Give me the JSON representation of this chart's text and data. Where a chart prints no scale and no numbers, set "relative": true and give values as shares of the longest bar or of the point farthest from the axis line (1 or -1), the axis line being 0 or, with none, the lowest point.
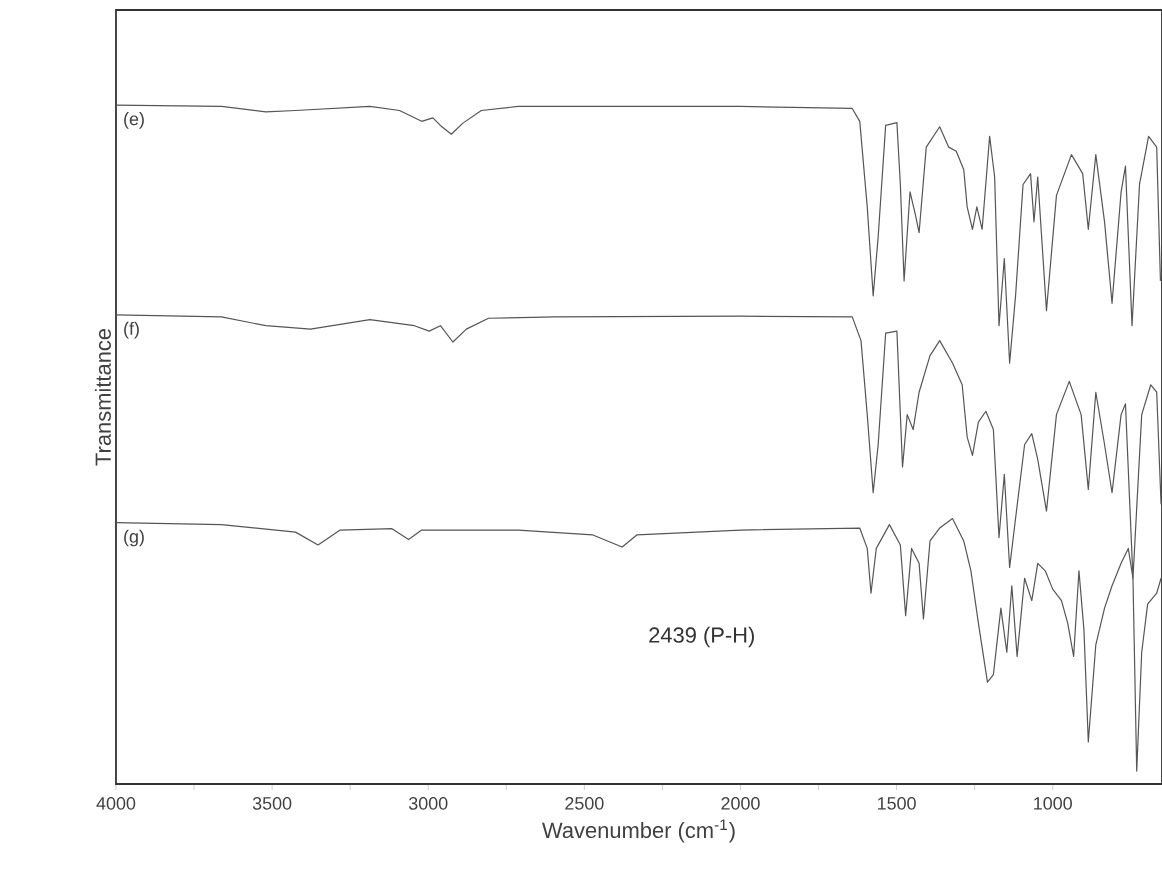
{
  "chart_data": {
    "type": "line",
    "relative": true,
    "xlabel": "Wavenumber (cm$^{-1}$)",
    "ylabel": "Transmittance",
    "xlim": [
      4000,
      650
    ],
    "xticks": [
      4000,
      3500,
      3000,
      2500,
      2000,
      1500,
      1000
    ],
    "annotations": [
      "2439 (P-H)"
    ],
    "series": [
      {
        "name": "(e)",
        "color": "#555555",
        "x": [
          4000,
          3662,
          3520,
          3425,
          3187,
          3092,
          3021,
          2985,
          2961,
          2926,
          2890,
          2830,
          2712,
          2000,
          1642,
          1618,
          1594,
          1575,
          1559,
          1535,
          1499,
          1488,
          1476,
          1457,
          1440,
          1428,
          1405,
          1362,
          1333,
          1309,
          1285,
          1274,
          1257,
          1243,
          1226,
          1202,
          1186,
          1172,
          1155,
          1138,
          1119,
          1095,
          1071,
          1060,
          1048,
          1020,
          988,
          940,
          904,
          886,
          862,
          834,
          810,
          781,
          767,
          746,
          722,
          693,
          667,
          655
        ],
        "values": [
          1.0,
          0.998,
          0.99,
          0.992,
          0.998,
          0.992,
          0.976,
          0.981,
          0.97,
          0.957,
          0.973,
          0.992,
          0.998,
          0.998,
          0.995,
          0.976,
          0.85,
          0.719,
          0.806,
          0.97,
          0.974,
          0.883,
          0.741,
          0.872,
          0.839,
          0.812,
          0.938,
          0.968,
          0.938,
          0.932,
          0.905,
          0.85,
          0.817,
          0.85,
          0.817,
          0.954,
          0.894,
          0.675,
          0.774,
          0.62,
          0.719,
          0.883,
          0.899,
          0.828,
          0.894,
          0.697,
          0.867,
          0.927,
          0.899,
          0.817,
          0.927,
          0.828,
          0.708,
          0.872,
          0.91,
          0.675,
          0.883,
          0.954,
          0.938,
          0.741
        ]
      },
      {
        "name": "(f)",
        "color": "#555555",
        "x": [
          4000,
          3662,
          3520,
          3377,
          3187,
          3044,
          2997,
          2961,
          2921,
          2878,
          2807,
          2593,
          2000,
          1642,
          1614,
          1594,
          1575,
          1559,
          1535,
          1499,
          1481,
          1466,
          1447,
          1428,
          1393,
          1362,
          1321,
          1290,
          1274,
          1257,
          1238,
          1214,
          1190,
          1172,
          1155,
          1138,
          1119,
          1090,
          1067,
          1048,
          1020,
          988,
          947,
          909,
          886,
          862,
          834,
          810,
          781,
          767,
          743,
          715,
          686,
          667,
          653
        ],
        "values": [
          0.691,
          0.688,
          0.675,
          0.67,
          0.684,
          0.675,
          0.667,
          0.675,
          0.651,
          0.67,
          0.686,
          0.688,
          0.689,
          0.688,
          0.653,
          0.544,
          0.429,
          0.5,
          0.664,
          0.667,
          0.467,
          0.544,
          0.522,
          0.577,
          0.631,
          0.653,
          0.62,
          0.588,
          0.511,
          0.484,
          0.533,
          0.549,
          0.522,
          0.363,
          0.456,
          0.319,
          0.391,
          0.5,
          0.516,
          0.478,
          0.402,
          0.544,
          0.593,
          0.544,
          0.434,
          0.577,
          0.5,
          0.429,
          0.544,
          0.56,
          0.303,
          0.544,
          0.588,
          0.577,
          0.412
        ]
      },
      {
        "name": "(g)",
        "color": "#555555",
        "x": [
          4000,
          3662,
          3425,
          3353,
          3282,
          3116,
          3063,
          3021,
          2712,
          2474,
          2426,
          2379,
          2331,
          2000,
          1618,
          1594,
          1582,
          1565,
          1523,
          1488,
          1471,
          1452,
          1428,
          1414,
          1393,
          1362,
          1321,
          1285,
          1262,
          1238,
          1209,
          1190,
          1166,
          1147,
          1131,
          1114,
          1090,
          1067,
          1048,
          1024,
          1000,
          972,
          952,
          933,
          916,
          900,
          886,
          862,
          834,
          810,
          781,
          758,
          743,
          731,
          715,
          696,
          667,
          653
        ],
        "values": [
          0.385,
          0.382,
          0.371,
          0.352,
          0.374,
          0.376,
          0.36,
          0.374,
          0.374,
          0.367,
          0.358,
          0.349,
          0.367,
          0.374,
          0.377,
          0.347,
          0.281,
          0.347,
          0.382,
          0.352,
          0.248,
          0.347,
          0.325,
          0.243,
          0.358,
          0.377,
          0.391,
          0.358,
          0.314,
          0.237,
          0.15,
          0.161,
          0.259,
          0.194,
          0.292,
          0.188,
          0.303,
          0.27,
          0.325,
          0.314,
          0.287,
          0.27,
          0.237,
          0.188,
          0.314,
          0.227,
          0.062,
          0.205,
          0.259,
          0.292,
          0.325,
          0.347,
          0.303,
          0.019,
          0.194,
          0.265,
          0.281,
          0.303
        ]
      }
    ]
  }
}
